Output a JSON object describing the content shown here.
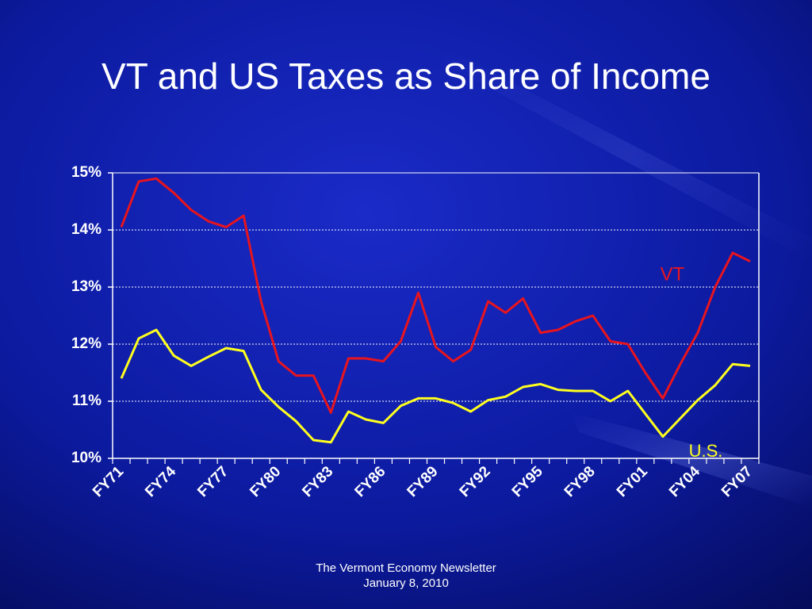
{
  "chart_data": {
    "type": "line",
    "title": "VT and US Taxes as Share of Income",
    "categories": [
      "FY71",
      null,
      null,
      "FY74",
      null,
      null,
      "FY77",
      null,
      null,
      "FY80",
      null,
      null,
      "FY83",
      null,
      null,
      "FY86",
      null,
      null,
      "FY89",
      null,
      null,
      "FY92",
      null,
      null,
      "FY95",
      null,
      null,
      "FY98",
      null,
      null,
      "FY01",
      null,
      null,
      "FY04",
      null,
      null,
      "FY07"
    ],
    "series": [
      {
        "name": "VT",
        "color": "#e8141e",
        "values": [
          14.05,
          14.85,
          14.9,
          14.65,
          14.35,
          14.15,
          14.05,
          14.25,
          12.75,
          11.7,
          11.45,
          11.45,
          10.8,
          11.75,
          11.75,
          11.7,
          12.05,
          12.9,
          11.95,
          11.7,
          11.9,
          12.75,
          12.55,
          12.8,
          12.2,
          12.25,
          12.4,
          12.5,
          12.05,
          12.0,
          11.5,
          11.05,
          11.65,
          12.2,
          13.0,
          13.6,
          13.45
        ]
      },
      {
        "name": "U.S.",
        "color": "#ffff1e",
        "values": [
          11.4,
          12.1,
          12.25,
          11.8,
          11.62,
          11.78,
          11.93,
          11.88,
          11.2,
          10.9,
          10.65,
          10.32,
          10.28,
          10.82,
          10.68,
          10.62,
          10.92,
          11.05,
          11.05,
          10.97,
          10.82,
          11.02,
          11.08,
          11.25,
          11.3,
          11.2,
          11.18,
          11.18,
          11.0,
          11.18,
          10.78,
          10.38,
          10.7,
          11.02,
          11.28,
          11.65,
          11.62
        ]
      }
    ],
    "ylim": [
      10,
      15
    ],
    "yticks": [
      {
        "value": 10,
        "label": "10%"
      },
      {
        "value": 11,
        "label": "11%"
      },
      {
        "value": 12,
        "label": "12%"
      },
      {
        "value": 13,
        "label": "13%"
      },
      {
        "value": 14,
        "label": "14%"
      },
      {
        "value": 15,
        "label": "15%"
      }
    ],
    "grid": true
  },
  "footer": {
    "line1": "The Vermont Economy Newsletter",
    "line2": "January 8, 2010"
  }
}
